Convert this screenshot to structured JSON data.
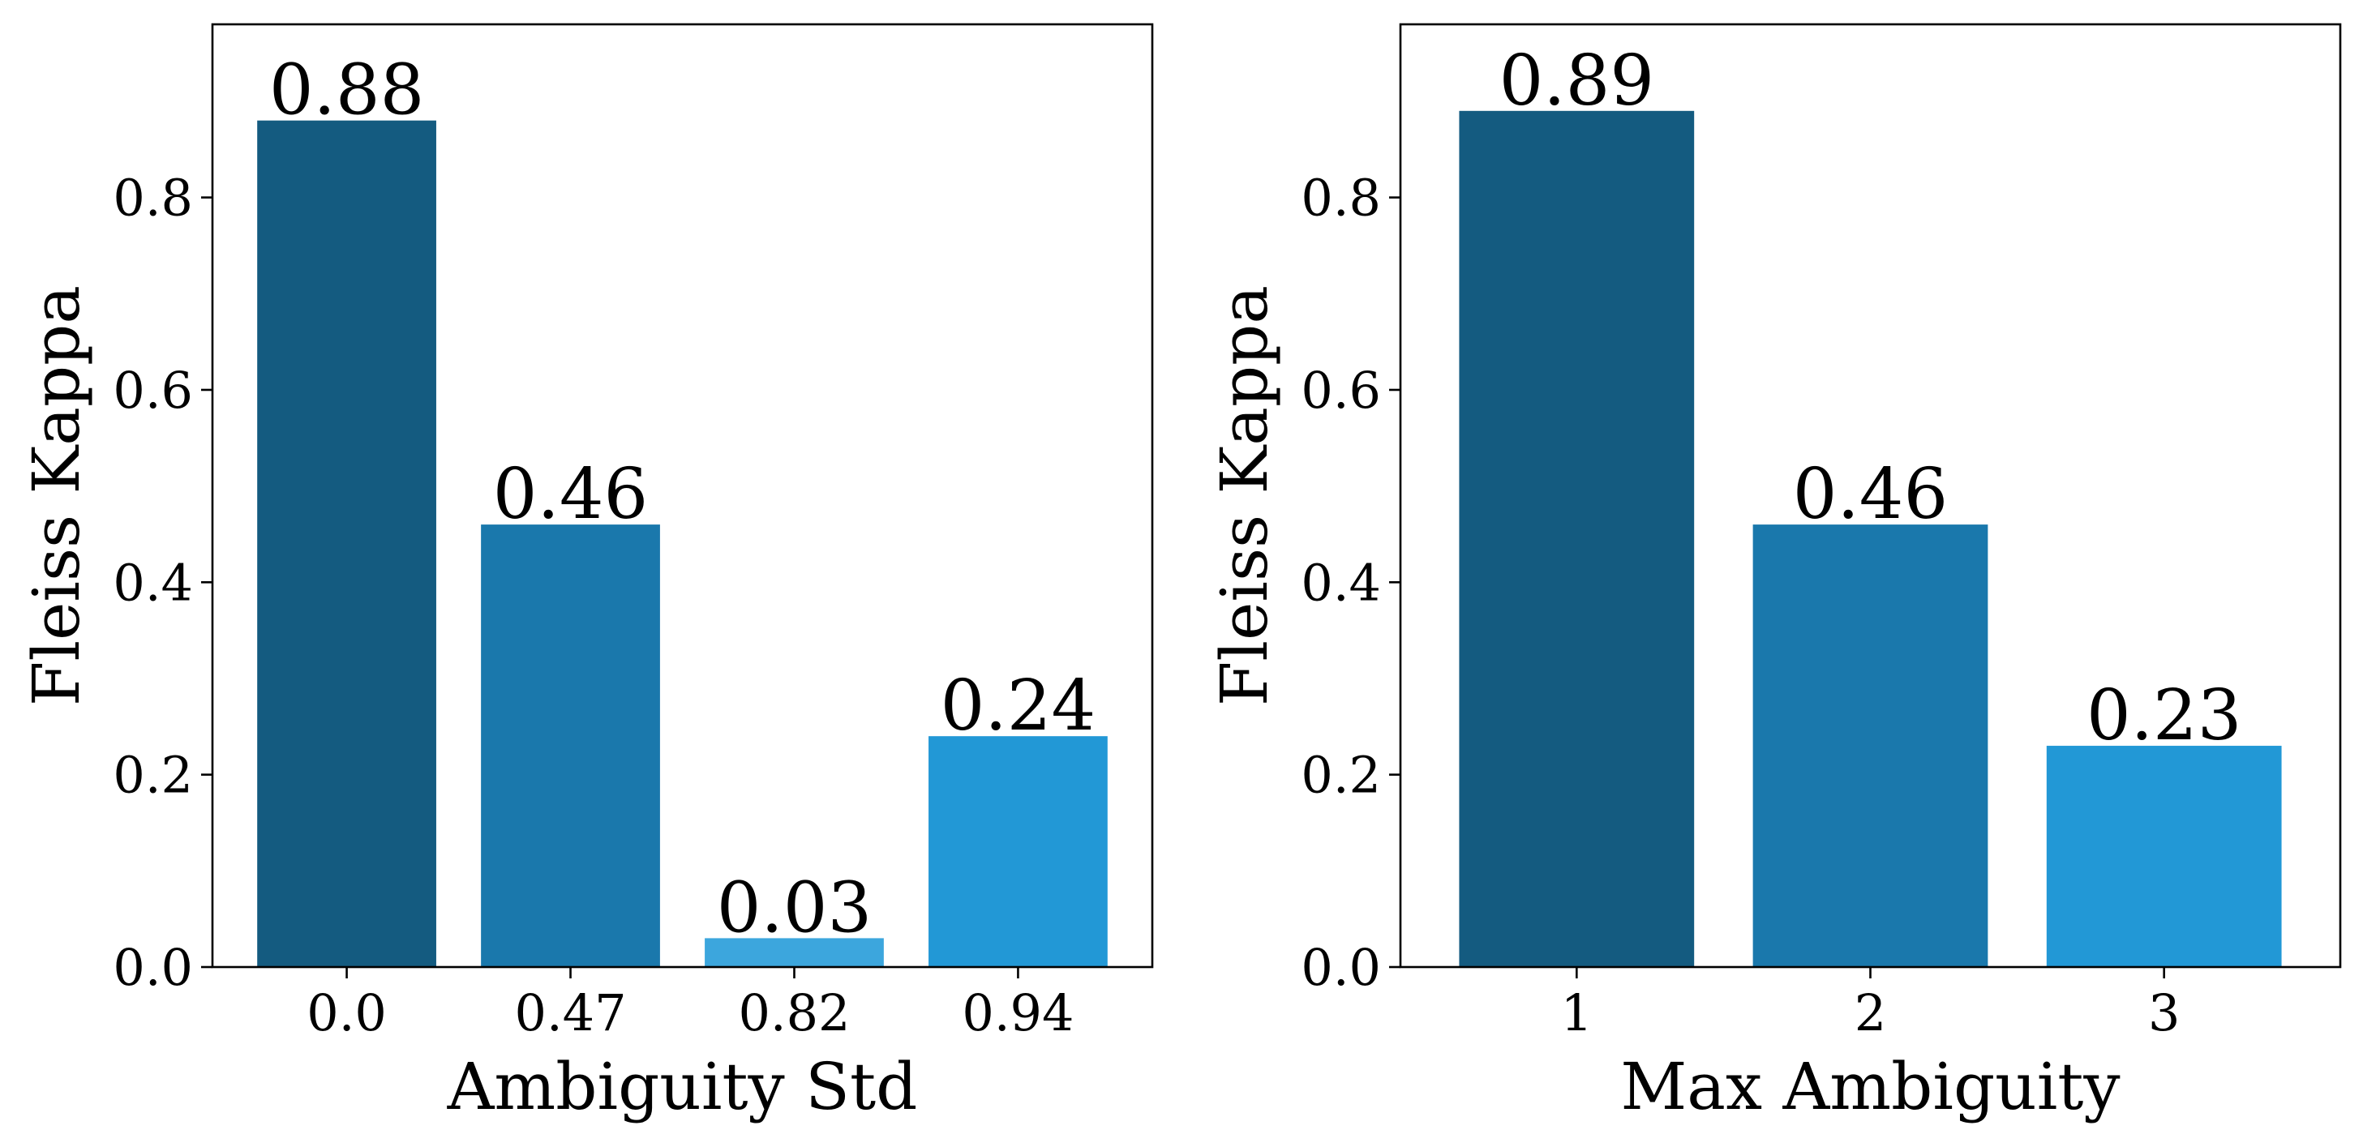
{
  "chart_data": [
    {
      "type": "bar",
      "categories": [
        "0.0",
        "0.47",
        "0.82",
        "0.94"
      ],
      "values": [
        0.88,
        0.46,
        0.03,
        0.24
      ],
      "data_labels": [
        "0.88",
        "0.46",
        "0.03",
        "0.24"
      ],
      "colors": [
        "#145b80",
        "#1a78ac",
        "#3ca6dd",
        "#2298d6"
      ],
      "xlabel": "Ambiguity Std",
      "ylabel": "Fleiss Kappa",
      "ylim": [
        0,
        0.98
      ],
      "yticks": [
        0.0,
        0.2,
        0.4,
        0.6,
        0.8
      ],
      "ytick_labels": [
        "0.0",
        "0.2",
        "0.4",
        "0.6",
        "0.8"
      ],
      "grid": false
    },
    {
      "type": "bar",
      "categories": [
        "1",
        "2",
        "3"
      ],
      "values": [
        0.89,
        0.46,
        0.23
      ],
      "data_labels": [
        "0.89",
        "0.46",
        "0.23"
      ],
      "colors": [
        "#145b80",
        "#1a78ac",
        "#2298d6"
      ],
      "xlabel": "Max Ambiguity",
      "ylabel": "Fleiss Kappa",
      "ylim": [
        0,
        0.98
      ],
      "yticks": [
        0.0,
        0.2,
        0.4,
        0.6,
        0.8
      ],
      "ytick_labels": [
        "0.0",
        "0.2",
        "0.4",
        "0.6",
        "0.8"
      ],
      "grid": false
    }
  ]
}
